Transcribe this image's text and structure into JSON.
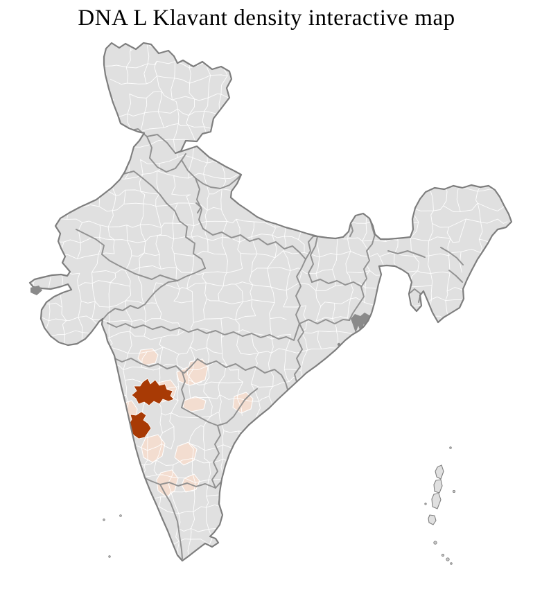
{
  "title": "DNA L Klavant density interactive map",
  "map": {
    "country": "India",
    "level": "districts",
    "colors": {
      "background": "#ffffff",
      "land": "#e0e0e0",
      "district_border": "#ffffff",
      "state_border": "#8b8b8b",
      "coast": "#7e7e7e",
      "density_high": "#a83a05",
      "density_low": "#f3ddd0",
      "marsh": "#8a8a8a"
    },
    "legend": {
      "high_density_districts": 2,
      "low_density_districts": 12
    }
  }
}
